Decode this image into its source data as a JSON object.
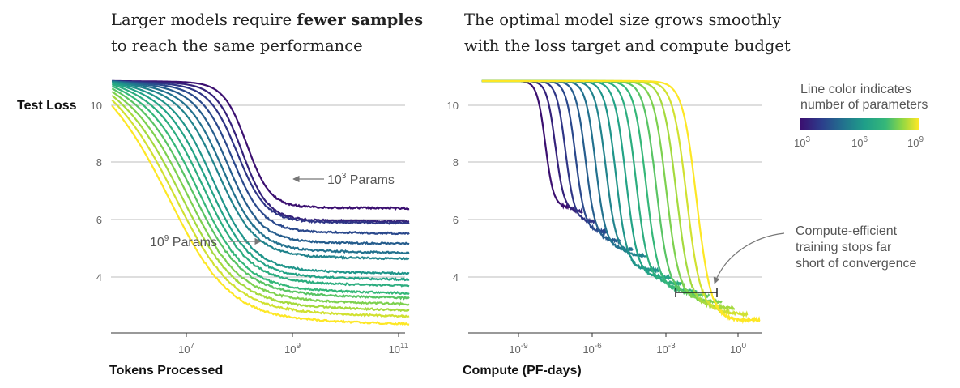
{
  "chart_data": [
    {
      "type": "line",
      "title_lines": [
        {
          "prefix": "Larger models require ",
          "bold": "fewer samples"
        },
        {
          "prefix": "to reach the same performance",
          "bold": ""
        }
      ],
      "xlabel": "Tokens Processed",
      "ylabel": "Test Loss",
      "xscale": "log",
      "ylim": [
        2.5,
        11
      ],
      "yticks": [
        "10",
        "8",
        "6",
        "4"
      ],
      "xticks": [
        {
          "base": "10",
          "exp": "7"
        },
        {
          "base": "10",
          "exp": "9"
        },
        {
          "base": "10",
          "exp": "11"
        }
      ],
      "grid": true,
      "annotations": [
        {
          "base": "10",
          "exp": "3",
          "suffix": " Params"
        },
        {
          "base": "10",
          "exp": "9",
          "suffix": " Params"
        }
      ],
      "series": [
        {
          "param_exp": 3.0,
          "plateau": 6.45
        },
        {
          "param_exp": 3.4,
          "plateau": 6.0
        },
        {
          "param_exp": 3.8,
          "plateau": 5.95
        },
        {
          "param_exp": 4.2,
          "plateau": 5.6
        },
        {
          "param_exp": 4.6,
          "plateau": 5.25
        },
        {
          "param_exp": 5.0,
          "plateau": 4.95
        },
        {
          "param_exp": 5.4,
          "plateau": 4.75
        },
        {
          "param_exp": 5.8,
          "plateau": 4.25
        },
        {
          "param_exp": 6.2,
          "plateau": 4.05
        },
        {
          "param_exp": 6.6,
          "plateau": 3.85
        },
        {
          "param_exp": 7.0,
          "plateau": 3.6
        },
        {
          "param_exp": 7.4,
          "plateau": 3.45
        },
        {
          "param_exp": 7.8,
          "plateau": 3.25
        },
        {
          "param_exp": 8.2,
          "plateau": 3.05
        },
        {
          "param_exp": 8.6,
          "plateau": 2.85
        },
        {
          "param_exp": 9.0,
          "plateau": 2.6
        }
      ]
    },
    {
      "type": "line",
      "title_lines": [
        {
          "prefix": "The optimal model size grows smoothly",
          "bold": ""
        },
        {
          "prefix": "with the loss target and compute budget",
          "bold": ""
        }
      ],
      "xlabel": "Compute (PF-days)",
      "ylabel": "",
      "xscale": "log",
      "ylim": [
        2.5,
        11
      ],
      "yticks": [
        "10",
        "8",
        "6",
        "4"
      ],
      "xticks": [
        {
          "base": "10",
          "exp": "-9"
        },
        {
          "base": "10",
          "exp": "-6"
        },
        {
          "base": "10",
          "exp": "-3"
        },
        {
          "base": "10",
          "exp": "0"
        }
      ],
      "grid": true,
      "annotation": [
        "Compute-efficient",
        "training stops far",
        "short of convergence"
      ],
      "legend": {
        "title": [
          "Line color indicates",
          "number of parameters"
        ],
        "labels": [
          {
            "base": "10",
            "exp": "3"
          },
          {
            "base": "10",
            "exp": "6"
          },
          {
            "base": "10",
            "exp": "9"
          }
        ],
        "placement": "top-right"
      },
      "series": [
        {
          "param_exp": 3.0,
          "plateau": 6.45
        },
        {
          "param_exp": 3.4,
          "plateau": 6.3
        },
        {
          "param_exp": 3.8,
          "plateau": 5.95
        },
        {
          "param_exp": 4.2,
          "plateau": 5.6
        },
        {
          "param_exp": 4.6,
          "plateau": 5.3
        },
        {
          "param_exp": 5.0,
          "plateau": 5.0
        },
        {
          "param_exp": 5.4,
          "plateau": 4.8
        },
        {
          "param_exp": 5.8,
          "plateau": 4.3
        },
        {
          "param_exp": 6.2,
          "plateau": 4.05
        },
        {
          "param_exp": 6.6,
          "plateau": 3.85
        },
        {
          "param_exp": 7.0,
          "plateau": 3.6
        },
        {
          "param_exp": 7.4,
          "plateau": 3.45
        },
        {
          "param_exp": 7.8,
          "plateau": 3.25
        },
        {
          "param_exp": 8.2,
          "plateau": 3.05
        },
        {
          "param_exp": 8.6,
          "plateau": 2.85
        },
        {
          "param_exp": 9.0,
          "plateau": 2.6
        }
      ]
    }
  ],
  "colors": {
    "colormap": [
      "#3b0f70",
      "#2c3e8c",
      "#22718e",
      "#1f9e89",
      "#35b779",
      "#8fd744",
      "#fde725"
    ],
    "grid": "#bdbdbd",
    "annotation": "#555555"
  }
}
